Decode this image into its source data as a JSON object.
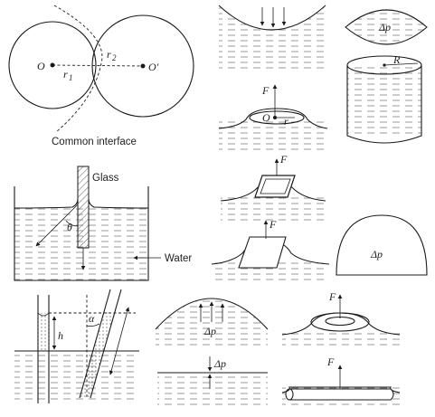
{
  "labels": {
    "o_left": "O",
    "o_right": "O′",
    "r1": "r",
    "r1_sub": "1",
    "r2": "r",
    "r2_sub": "2",
    "common_interface": "Common interface",
    "glass": "Glass",
    "water": "Water",
    "theta": "θ",
    "h": "h",
    "alpha": "α",
    "delta_p_lens": "Δp",
    "delta_p_dome": "Δp",
    "delta_p_hill": "Δp",
    "delta_p_film": "Δp",
    "R": "R",
    "F_disc": "F",
    "O_disc": "O",
    "r_disc": "r",
    "F_frame": "F",
    "F_plate": "F",
    "F_ring": "F",
    "F_wire": "F"
  }
}
